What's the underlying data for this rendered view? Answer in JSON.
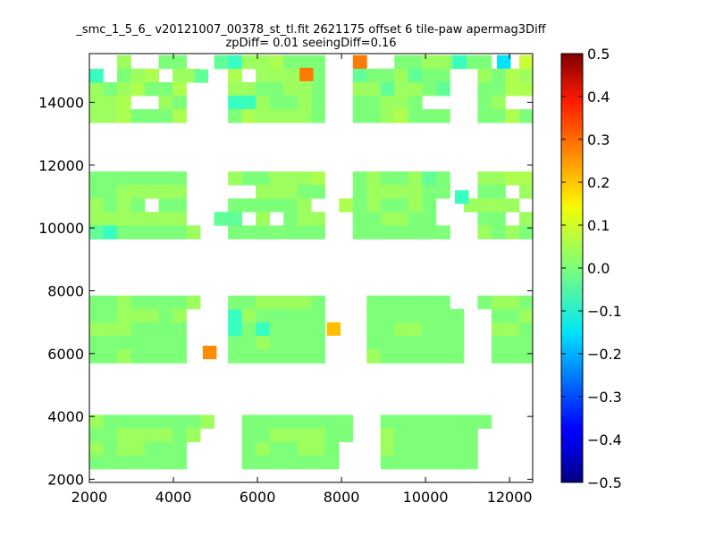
{
  "chart_data": {
    "type": "heatmap",
    "title_line1": "_smc_1_5_6_ v20121007_00378_st_tl.fit 2621175 offset 6 tile-paw apermag3Diff",
    "title_line2": "zpDiff= 0.01 seeingDiff=0.16",
    "xlabel": "",
    "ylabel": "",
    "xlim": [
      2000,
      12550
    ],
    "ylim": [
      1900,
      15550
    ],
    "xticks": [
      "2000",
      "4000",
      "6000",
      "8000",
      "10000",
      "12000"
    ],
    "xtick_values": [
      2000,
      4000,
      6000,
      8000,
      10000,
      12000
    ],
    "yticks": [
      "2000",
      "4000",
      "6000",
      "8000",
      "10000",
      "12000",
      "14000"
    ],
    "ytick_values": [
      2000,
      4000,
      6000,
      8000,
      10000,
      12000,
      14000
    ],
    "colorbar": {
      "range": [
        -0.5,
        0.5
      ],
      "ticks": [
        "0.5",
        "0.4",
        "0.3",
        "0.2",
        "0.1",
        "0.0",
        "−0.1",
        "−0.2",
        "−0.3",
        "−0.4",
        "−0.5"
      ],
      "tick_values": [
        0.5,
        0.4,
        0.3,
        0.2,
        0.1,
        0.0,
        -0.1,
        -0.2,
        -0.3,
        -0.4,
        -0.5
      ],
      "colormap": "jet"
    },
    "cell_size": [
      330,
      430
    ],
    "x_origin": 2000,
    "y_origin": 1900,
    "grid": false,
    "rows": [
      [
        "  g  hh  ijggfhhh  k  hhgghhh  c       ",
        "h hgf gg  f ggggh  ihhgihh  ghfg      g",
        "ghgfhhf   gghhggh  ggigghi  hhff      g",
        "ggf  gh   jjghhgh  hhggh    hg        ",
        "ggfhhhf   hfggggh  hhgfhhh  hhfhhf    "
      ],
      [
        "hhhhhhh   ghhgggf  hghhgih  ggfff  j  ",
        "hhggggg     ggghh  hgggghh  hh ggg  g ",
        "ghgh hh   hhhhhg  fhghhgh  gggg      h",
        "ggggggg  ii g hgg  hhgghh   hh gg     ",
        "ijhhhhhg  hhhhhhh  hhhhhhh  ghghhhh   "
      ],
      [
        "hhghhhhg  hhggggh   hhhhhh  hgghhhhhhhg",
        "hhggghg   hghhhhh   hhhhhhh  hhggggg  ",
        "ggghhhh   jhjhhhh   hhgghhh  gghhhhh  ",
        "hhhhhhh   hhghhhh   hhhhhhh  hhhhhh   ",
        "hhghhhh   hhhhhhh   ghhhhhh  hhhhhhh  "
      ],
      [
        "ghhhhhhhg  hhhhhhhh  hhhhhhhh   hhhhhhh ",
        "hhgggghg   hhgggghh  ghhhhhh    hhhhhhh ",
        "ghgghhh    hghhggh   ghhhhhh    hhhhhh  ",
        "hhhhhhh    hhhhhhh   hhhhhhh    hhhhhhh "
      ]
    ]
  }
}
